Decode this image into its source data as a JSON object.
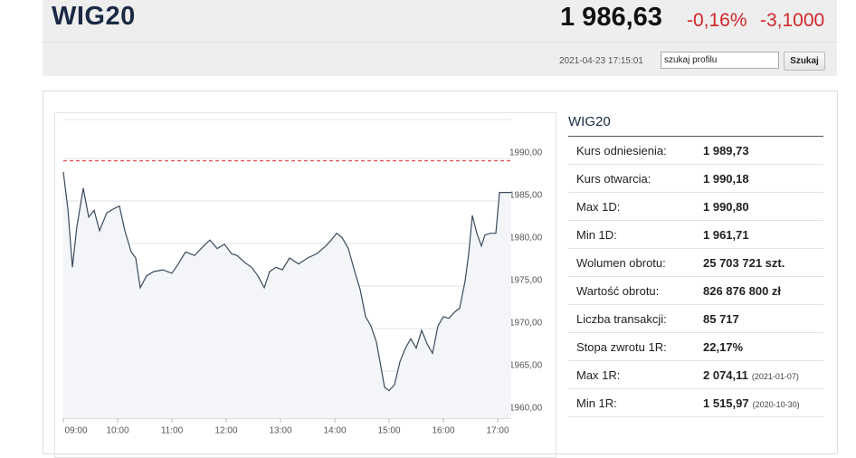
{
  "header": {
    "title": "WIG20",
    "price": "1 986,63",
    "change_pct": "-0,16%",
    "change_abs": "-3,1000",
    "timestamp": "2021-04-23 17:15:01",
    "search_placeholder": "szukaj profilu",
    "search_button": "Szukaj"
  },
  "chart_data": {
    "type": "line",
    "x": [
      "09:00",
      "09:05",
      "09:10",
      "09:15",
      "09:22",
      "09:28",
      "09:34",
      "09:40",
      "09:48",
      "09:56",
      "10:02",
      "10:08",
      "10:15",
      "10:20",
      "10:25",
      "10:32",
      "10:40",
      "10:50",
      "11:00",
      "11:07",
      "11:15",
      "11:25",
      "11:35",
      "11:42",
      "11:50",
      "11:58",
      "12:06",
      "12:12",
      "12:20",
      "12:28",
      "12:35",
      "12:42",
      "12:48",
      "12:55",
      "13:02",
      "13:10",
      "13:20",
      "13:30",
      "13:40",
      "13:50",
      "13:56",
      "14:02",
      "14:08",
      "14:15",
      "14:22",
      "14:28",
      "14:34",
      "14:40",
      "14:46",
      "14:50",
      "14:55",
      "15:00",
      "15:06",
      "15:12",
      "15:18",
      "15:24",
      "15:30",
      "15:36",
      "15:42",
      "15:48",
      "15:54",
      "16:00",
      "16:06",
      "16:12",
      "16:18",
      "16:24",
      "16:28",
      "16:32",
      "16:37",
      "16:42",
      "16:46",
      "16:52",
      "16:58",
      "17:02",
      "17:15"
    ],
    "series": [
      {
        "name": "WIG20",
        "color": "#3b4a5c",
        "values": [
          1988.4,
          1984.1,
          1977.2,
          1982.0,
          1986.5,
          1983.1,
          1983.9,
          1981.5,
          1983.6,
          1984.1,
          1984.4,
          1981.5,
          1979.0,
          1978.3,
          1974.8,
          1976.2,
          1976.7,
          1976.9,
          1976.5,
          1977.6,
          1979.0,
          1978.6,
          1979.7,
          1980.4,
          1979.4,
          1979.9,
          1978.8,
          1978.6,
          1977.8,
          1977.2,
          1976.2,
          1974.8,
          1976.7,
          1977.2,
          1976.9,
          1978.3,
          1977.6,
          1978.3,
          1978.8,
          1979.7,
          1980.4,
          1981.2,
          1980.7,
          1979.4,
          1976.7,
          1974.6,
          1971.4,
          1970.3,
          1968.4,
          1966.1,
          1963.1,
          1962.7,
          1963.4,
          1966.1,
          1967.7,
          1968.8,
          1967.7,
          1969.8,
          1968.2,
          1967.1,
          1970.3,
          1971.4,
          1971.2,
          1971.9,
          1972.4,
          1975.6,
          1978.8,
          1983.3,
          1981.2,
          1979.7,
          1981.0,
          1981.2,
          1981.2,
          1986.0,
          1986.0
        ]
      }
    ],
    "reference_line": 1989.73,
    "reference_color": "#e05a5a",
    "xlim": [
      "09:00",
      "17:15"
    ],
    "xticks": [
      "09:00",
      "10:00",
      "11:00",
      "12:00",
      "13:00",
      "14:00",
      "15:00",
      "16:00",
      "17:00"
    ],
    "ylim": [
      1960,
      1995
    ],
    "yticks": [
      {
        "value": 1960,
        "label": "1960,00"
      },
      {
        "value": 1965,
        "label": "1965,00"
      },
      {
        "value": 1970,
        "label": "1970,00"
      },
      {
        "value": 1975,
        "label": "1975,00"
      },
      {
        "value": 1980,
        "label": "1980,00"
      },
      {
        "value": 1985,
        "label": "1985,00"
      },
      {
        "value": 1990,
        "label": "1990,00"
      }
    ],
    "grid": true
  },
  "table": {
    "title": "WIG20",
    "rows": [
      {
        "label": "Kurs odniesienia:",
        "value": "1 989,73"
      },
      {
        "label": "Kurs otwarcia:",
        "value": "1 990,18"
      },
      {
        "label": "Max 1D:",
        "value": "1 990,80"
      },
      {
        "label": "Min 1D:",
        "value": "1 961,71"
      },
      {
        "label": "Wolumen obrotu:",
        "value": "25 703 721 szt."
      },
      {
        "label": "Wartość obrotu:",
        "value": "826 876 800 zł"
      },
      {
        "label": "Liczba transakcji:",
        "value": "85 717"
      },
      {
        "label": "Stopa zwrotu 1R:",
        "value": "22,17%"
      },
      {
        "label": "Max 1R:",
        "value": "2 074,11",
        "note": "(2021-01-07)"
      },
      {
        "label": "Min 1R:",
        "value": "1 515,97",
        "note": "(2020-10-30)"
      }
    ]
  }
}
